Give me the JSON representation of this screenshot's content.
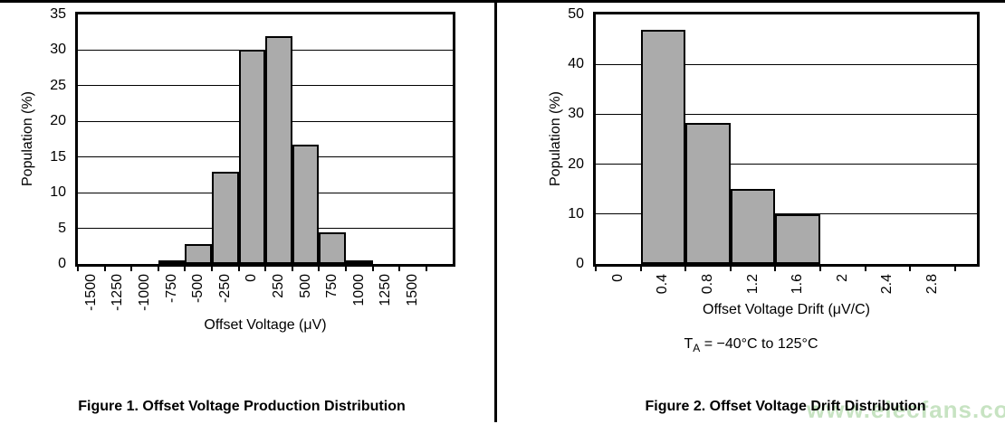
{
  "page": {
    "watermark": "www.elecfans.com",
    "colors": {
      "bar_fill": "#ababab",
      "bar_border": "#000000",
      "watermark_green": "#c7e3c2"
    }
  },
  "figures": [
    {
      "caption": "Figure 1. Offset Voltage Production Distribution"
    },
    {
      "caption": "Figure 2. Offset Voltage Drift Distribution",
      "note_prefix": "T",
      "note_sub": "A",
      "note_rest": " = −40°C to 125°C"
    }
  ],
  "chart_data": [
    {
      "type": "bar",
      "title": "Offset Voltage Production Distribution",
      "categories": [
        "-1500",
        "-1250",
        "-1000",
        "-750",
        "-500",
        "-250",
        "0",
        "250",
        "500",
        "750",
        "1000",
        "1250",
        "1500"
      ],
      "values": [
        0,
        0,
        0,
        0.2,
        2.8,
        13,
        30,
        32,
        16.8,
        4.5,
        0.5,
        0,
        0
      ],
      "xlabel": "Offset Voltage (μV)",
      "ylabel": "Population (%)",
      "ylim": [
        0,
        35
      ],
      "yticks": [
        0,
        5,
        10,
        15,
        20,
        25,
        30,
        35
      ],
      "grid": true,
      "legend": "none"
    },
    {
      "type": "bar",
      "title": "Offset Voltage Drift Distribution",
      "categories": [
        "0",
        "0.4",
        "0.8",
        "1.2",
        "1.6",
        "2",
        "2.4",
        "2.8"
      ],
      "values": [
        0,
        47,
        28.3,
        15,
        10,
        0,
        0,
        0
      ],
      "xlabel": "Offset Voltage Drift (μV/C)",
      "ylabel": "Population (%)",
      "ylim": [
        0,
        50
      ],
      "yticks": [
        0,
        10,
        20,
        30,
        40,
        50
      ],
      "grid": true,
      "legend": "none",
      "condition": "TA = −40°C to 125°C"
    }
  ]
}
